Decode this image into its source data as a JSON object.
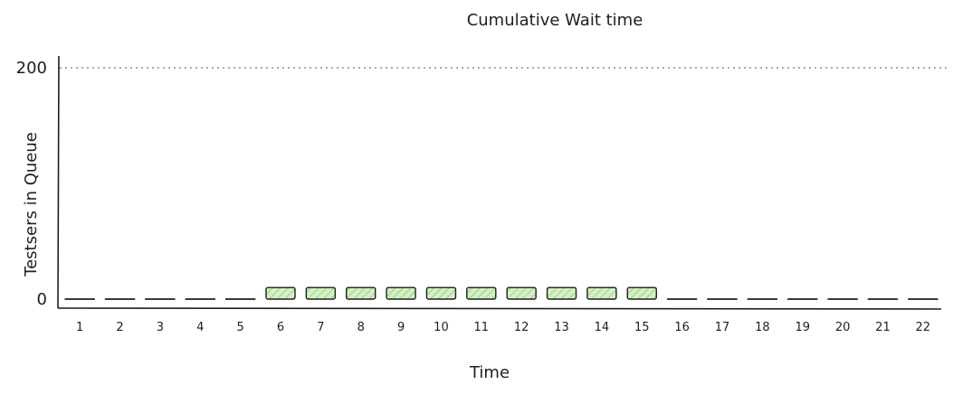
{
  "chart_data": {
    "type": "bar",
    "title": "Cumulative Wait time",
    "xlabel": "Time",
    "ylabel": "Testsers in Queue",
    "categories": [
      "1",
      "2",
      "3",
      "4",
      "5",
      "6",
      "7",
      "8",
      "9",
      "10",
      "11",
      "12",
      "13",
      "14",
      "15",
      "16",
      "17",
      "18",
      "19",
      "20",
      "21",
      "22"
    ],
    "values": [
      0,
      0,
      0,
      0,
      0,
      10,
      10,
      10,
      10,
      10,
      10,
      10,
      10,
      10,
      10,
      0,
      0,
      0,
      0,
      0,
      0,
      0
    ],
    "ylim": [
      0,
      200
    ],
    "yticks": [
      "0",
      "200"
    ],
    "reference_line": 200,
    "bar_color": "#d3f0c4",
    "bar_hatch_color": "#7fb862",
    "stroke_color": "#1e1e1e",
    "grid": false
  }
}
